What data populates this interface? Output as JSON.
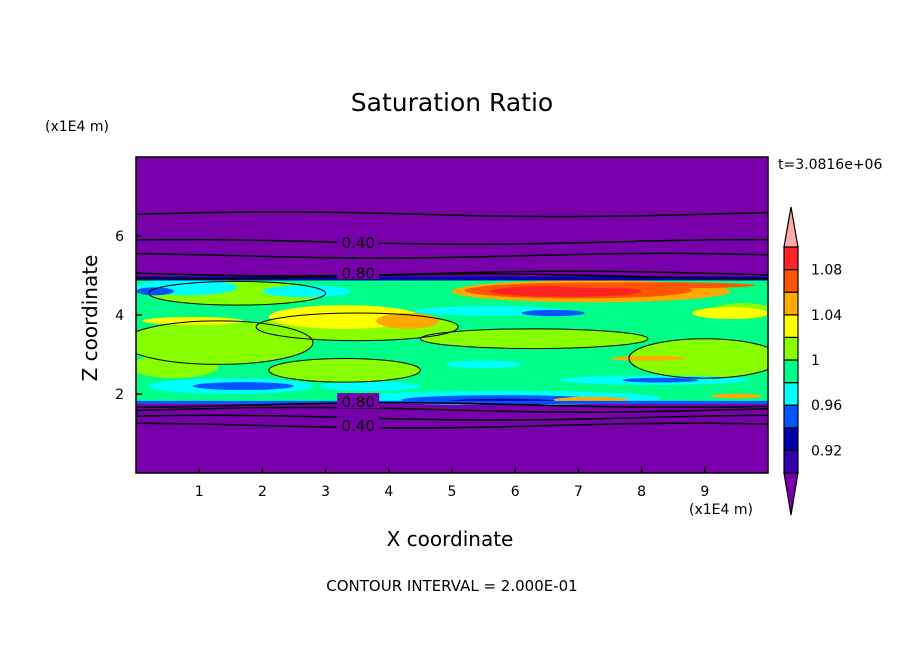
{
  "chart_data": {
    "type": "heatmap",
    "subtype": "filled-contour",
    "title": "Saturation Ratio",
    "xlabel": "X coordinate",
    "ylabel": "Z coordinate",
    "x_unit": "(x1E4 m)",
    "y_unit": "(x1E4 m)",
    "xlim": [
      0,
      10
    ],
    "ylim": [
      0,
      8
    ],
    "x_ticks": [
      "1",
      "2",
      "3",
      "4",
      "5",
      "6",
      "7",
      "8",
      "9"
    ],
    "y_ticks": [
      "2",
      "4",
      "6"
    ],
    "time_label": "t=3.0816e+06",
    "footer": "CONTOUR INTERVAL = 2.000E-01",
    "contour_labels": [
      "0.40",
      "0.80",
      "0.80",
      "0.40"
    ],
    "colorbar": {
      "levels": [
        0.9,
        0.92,
        0.94,
        0.96,
        0.98,
        1.0,
        1.02,
        1.04,
        1.06,
        1.08,
        1.1
      ],
      "tick_labels": [
        "0.92",
        "0.96",
        "1",
        "1.04",
        "1.08"
      ],
      "colors": [
        "#3300aa",
        "#0000aa",
        "#0055ff",
        "#00ffff",
        "#00ff88",
        "#88ff00",
        "#ffff00",
        "#ffaa00",
        "#ff5500",
        "#ff2222"
      ],
      "under_color": "#7700aa",
      "over_color": "#ffaaaa",
      "extend": "both"
    },
    "field_summary": {
      "moist_layer_z": [
        1.75,
        4.95
      ],
      "background_value": "below 0.90",
      "max_region": "x 5.5-9.5, z 4.5-4.9, values 1.06-1.10"
    }
  }
}
